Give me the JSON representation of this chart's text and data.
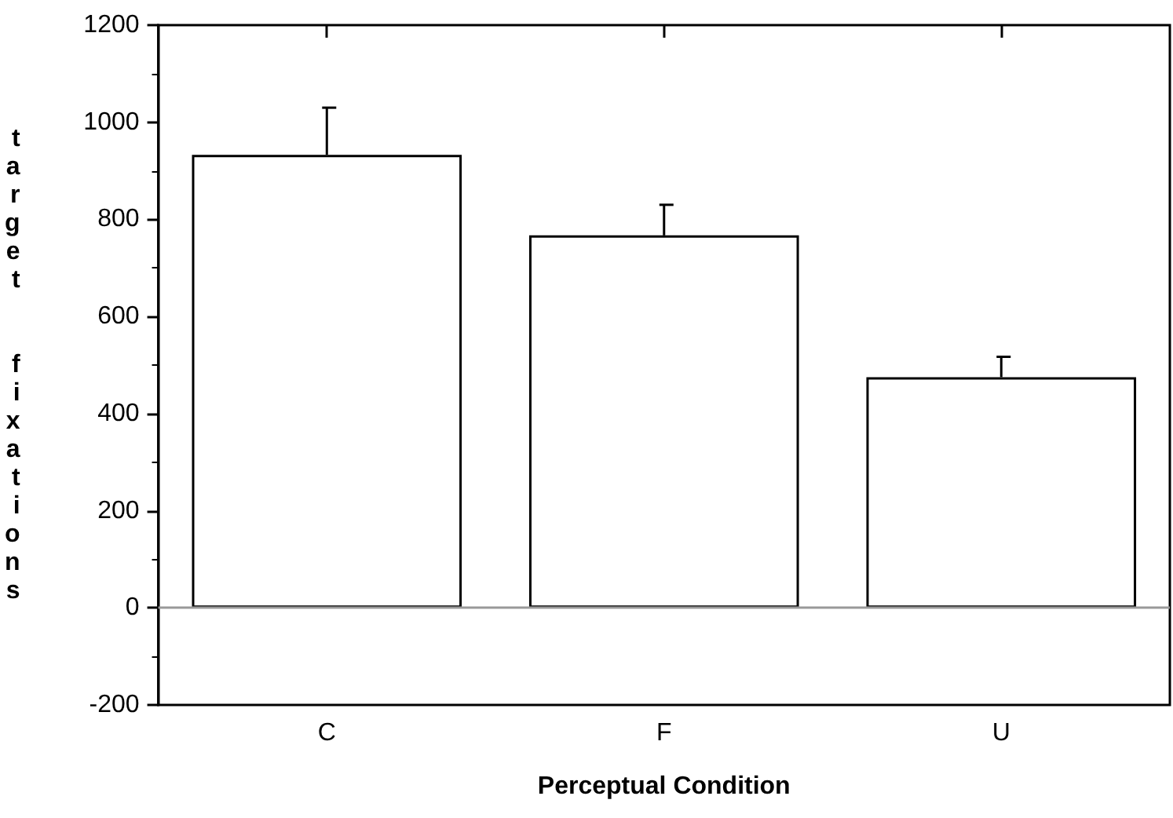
{
  "chart_data": {
    "type": "bar",
    "xlabel": "Perceptual Condition",
    "ylabel": "target  fixations",
    "categories": [
      "C",
      "F",
      "U"
    ],
    "values": [
      933,
      767,
      475
    ],
    "errors": [
      [
        933,
        1030
      ],
      [
        767,
        830
      ],
      [
        475,
        517
      ]
    ],
    "color": "#ffffff",
    "ylim": [
      -200,
      1200
    ],
    "yticks": [
      -200,
      0,
      200,
      400,
      600,
      800,
      1000,
      1200
    ],
    "ref_lines": [
      {
        "axis": "y",
        "value": 0,
        "color": "#999999"
      }
    ],
    "grid": false
  }
}
